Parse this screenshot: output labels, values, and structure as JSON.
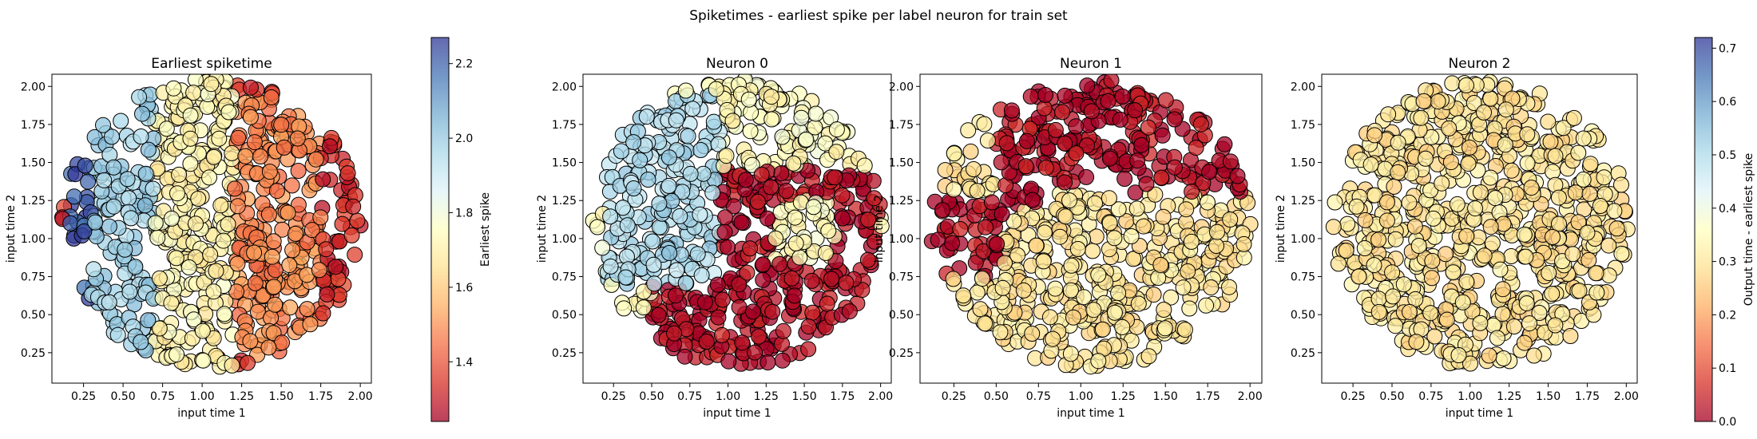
{
  "chart_data": {
    "suptitle": "Spiketimes - earliest spike per label neuron for train set",
    "type": "scatter",
    "colormap": "RdYlBu",
    "marker_alpha": 0.75,
    "marker_edge_color": "#000000",
    "panels": [
      {
        "title": "Earliest spiketime",
        "xlabel": "input time 1",
        "ylabel": "input time 2",
        "xlim": [
          0.05,
          2.07
        ],
        "ylim": [
          0.05,
          2.08
        ],
        "xticks": [
          0.25,
          0.5,
          0.75,
          1.0,
          1.25,
          1.5,
          1.75,
          2.0
        ],
        "yticks": [
          0.25,
          0.5,
          0.75,
          1.0,
          1.25,
          1.5,
          1.75,
          2.0
        ],
        "xtick_labels": [
          "0.25",
          "0.50",
          "0.75",
          "1.00",
          "1.25",
          "1.50",
          "1.75",
          "2.00"
        ],
        "ytick_labels": [
          "0.25",
          "0.50",
          "0.75",
          "1.00",
          "1.25",
          "1.50",
          "1.75",
          "2.00"
        ],
        "color_min": 1.24,
        "color_max": 2.27,
        "regions": [
          {
            "description": "dark blue crescent on left",
            "x_range": [
              0.13,
              0.45
            ],
            "y_range": [
              0.5,
              1.65
            ],
            "value": 2.22
          },
          {
            "description": "light blue band",
            "x_range": [
              0.3,
              0.8
            ],
            "y_range": [
              0.15,
              2.05
            ],
            "value": 1.98
          },
          {
            "description": "pale yellow band",
            "x_range": [
              0.7,
              1.2
            ],
            "y_range": [
              0.15,
              2.05
            ],
            "value": 1.72
          },
          {
            "description": "orange region",
            "x_range": [
              1.2,
              1.75
            ],
            "y_range": [
              0.2,
              1.95
            ],
            "value": 1.48
          },
          {
            "description": "red right edge",
            "x_range": [
              1.75,
              2.0
            ],
            "y_range": [
              0.8,
              1.4
            ],
            "value": 1.33
          }
        ]
      },
      {
        "title": "Neuron 0",
        "xlabel": "input time 1",
        "ylabel": "input time 2",
        "xlim": [
          0.05,
          2.07
        ],
        "ylim": [
          0.05,
          2.08
        ],
        "xticks": [
          0.25,
          0.5,
          0.75,
          1.0,
          1.25,
          1.5,
          1.75,
          2.0
        ],
        "yticks": [
          0.25,
          0.5,
          0.75,
          1.0,
          1.25,
          1.5,
          1.75,
          2.0
        ],
        "xtick_labels": [
          "0.25",
          "0.50",
          "0.75",
          "1.00",
          "1.25",
          "1.50",
          "1.75",
          "2.00"
        ],
        "ytick_labels": [
          "0.25",
          "0.50",
          "0.75",
          "1.00",
          "1.25",
          "1.50",
          "1.75",
          "2.00"
        ],
        "color_min": 0.0,
        "color_max": 0.72,
        "regions": [
          {
            "description": "red lower-right half",
            "x_range": [
              0.5,
              2.0
            ],
            "y_range": [
              0.1,
              1.45
            ],
            "value": 0.02
          },
          {
            "description": "blue upper-left",
            "x_range": [
              0.2,
              0.95
            ],
            "y_range": [
              0.7,
              1.95
            ],
            "value": 0.5
          },
          {
            "description": "pale ring at (1.5, 1.05)",
            "x_range": [
              1.3,
              1.7
            ],
            "y_range": [
              0.85,
              1.25
            ],
            "value": 0.35
          }
        ]
      },
      {
        "title": "Neuron 1",
        "xlabel": "input time 1",
        "ylabel": "input time 2",
        "xlim": [
          0.05,
          2.07
        ],
        "ylim": [
          0.05,
          2.08
        ],
        "xticks": [
          0.25,
          0.5,
          0.75,
          1.0,
          1.25,
          1.5,
          1.75,
          2.0
        ],
        "yticks": [
          0.25,
          0.5,
          0.75,
          1.0,
          1.25,
          1.5,
          1.75,
          2.0
        ],
        "xtick_labels": [
          "0.25",
          "0.50",
          "0.75",
          "1.00",
          "1.25",
          "1.50",
          "1.75",
          "2.00"
        ],
        "ytick_labels": [
          "0.25",
          "0.50",
          "0.75",
          "1.00",
          "1.25",
          "1.50",
          "1.75",
          "2.00"
        ],
        "color_min": 0.0,
        "color_max": 0.72,
        "regions": [
          {
            "description": "red top crescent",
            "x_range": [
              0.5,
              1.95
            ],
            "y_range": [
              1.2,
              2.05
            ],
            "value": 0.02
          },
          {
            "description": "red left blob",
            "x_range": [
              0.1,
              0.55
            ],
            "y_range": [
              0.75,
              1.3
            ],
            "value": 0.02
          },
          {
            "description": "yellow/orange bottom-right",
            "x_range": [
              0.8,
              2.0
            ],
            "y_range": [
              0.15,
              1.3
            ],
            "value": 0.3
          }
        ]
      },
      {
        "title": "Neuron 2",
        "xlabel": "input time 1",
        "ylabel": "input time 2",
        "xlim": [
          0.05,
          2.07
        ],
        "ylim": [
          0.05,
          2.08
        ],
        "xticks": [
          0.25,
          0.5,
          0.75,
          1.0,
          1.25,
          1.5,
          1.75,
          2.0
        ],
        "yticks": [
          0.25,
          0.5,
          0.75,
          1.0,
          1.25,
          1.5,
          1.75,
          2.0
        ],
        "xtick_labels": [
          "0.25",
          "0.50",
          "0.75",
          "1.00",
          "1.25",
          "1.50",
          "1.75",
          "2.00"
        ],
        "ytick_labels": [
          "0.25",
          "0.50",
          "0.75",
          "1.00",
          "1.25",
          "1.50",
          "1.75",
          "2.00"
        ],
        "color_min": 0.0,
        "color_max": 0.72,
        "regions": [
          {
            "description": "red left blob",
            "x_range": [
              0.1,
              0.7
            ],
            "y_range": [
              0.6,
              1.5
            ],
            "value": 0.02
          },
          {
            "description": "red center blob",
            "x_range": [
              0.7,
              1.3
            ],
            "y_range": [
              0.6,
              1.1
            ],
            "value": 0.02
          },
          {
            "description": "red right blob",
            "x_range": [
              1.35,
              1.95
            ],
            "y_range": [
              0.8,
              1.3
            ],
            "value": 0.02
          },
          {
            "description": "yellow/orange elsewhere",
            "x_range": [
              0.1,
              2.0
            ],
            "y_range": [
              0.15,
              2.05
            ],
            "value": 0.3
          }
        ]
      }
    ],
    "colorbars": [
      {
        "label": "Earliest spike",
        "vmin": 1.24,
        "vmax": 2.27,
        "ticks": [
          1.4,
          1.6,
          1.8,
          2.0,
          2.2
        ],
        "tick_labels": [
          "1.4",
          "1.6",
          "1.8",
          "2.0",
          "2.2"
        ]
      },
      {
        "label": "Output time - earliest spike",
        "vmin": 0.0,
        "vmax": 0.72,
        "ticks": [
          0.0,
          0.1,
          0.2,
          0.3,
          0.4,
          0.5,
          0.6,
          0.7
        ],
        "tick_labels": [
          "0.0",
          "0.1",
          "0.2",
          "0.3",
          "0.4",
          "0.5",
          "0.6",
          "0.7"
        ]
      }
    ]
  }
}
